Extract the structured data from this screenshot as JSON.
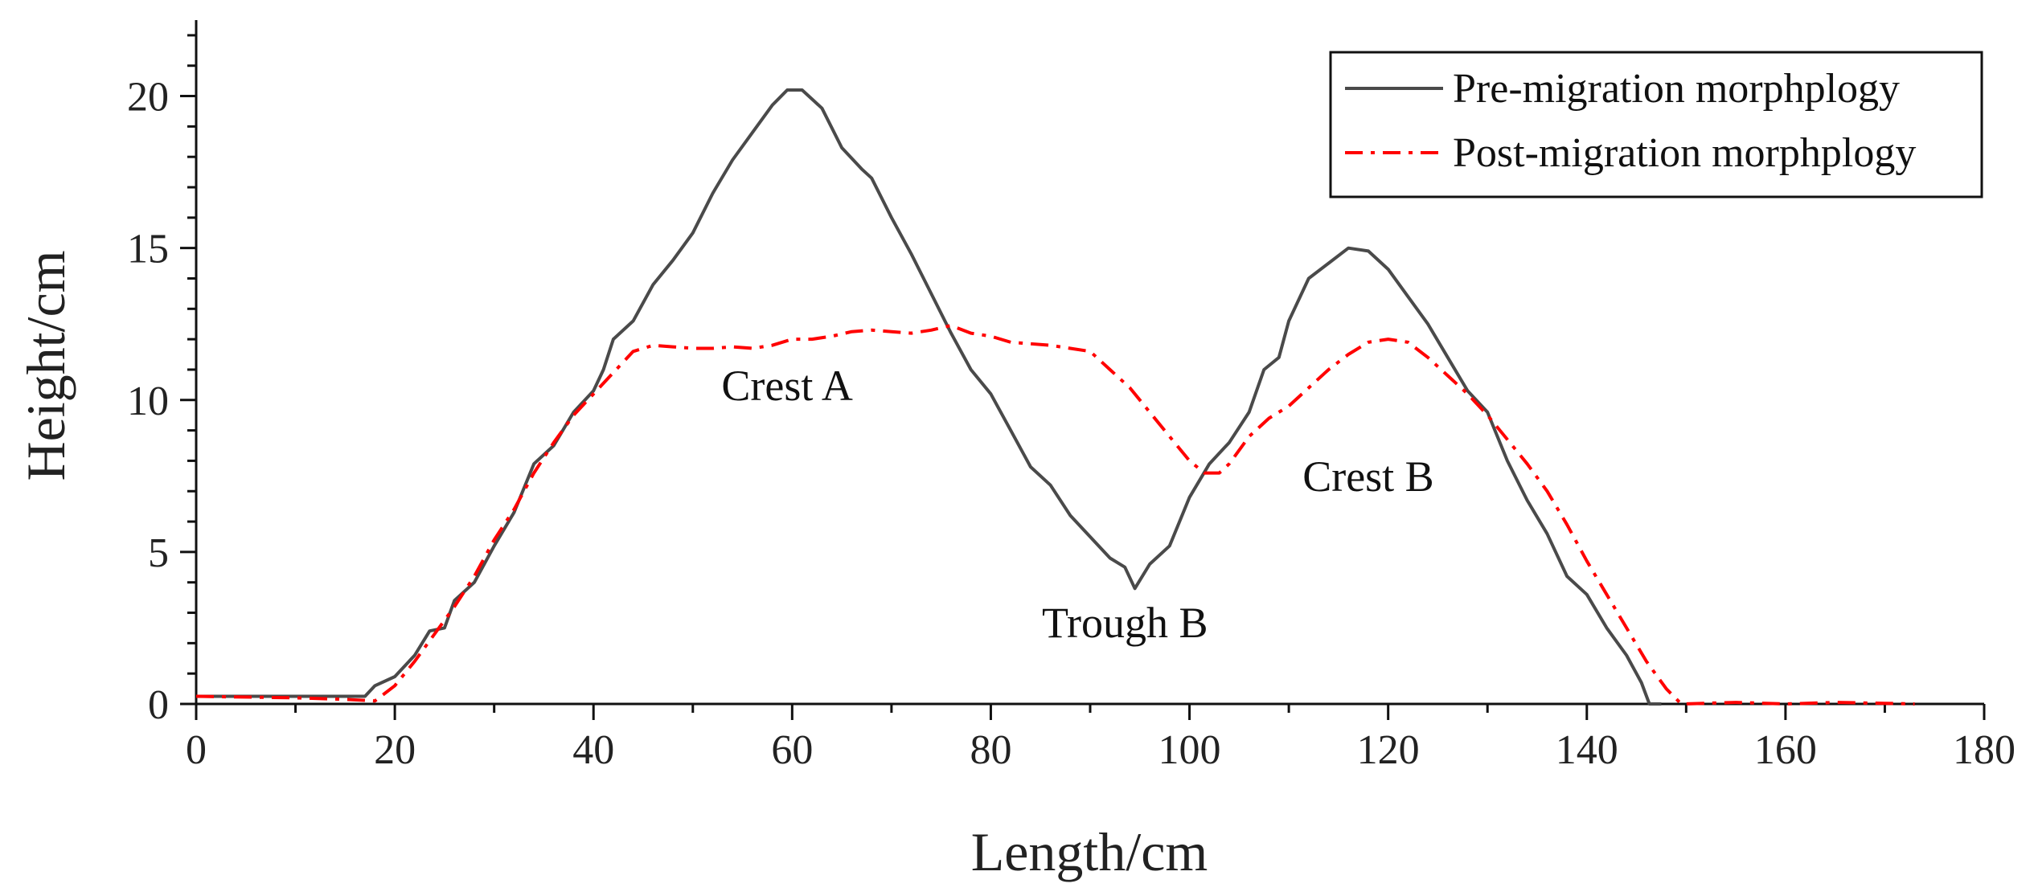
{
  "chart_data": {
    "type": "line",
    "xlabel": "Length/cm",
    "ylabel": "Height/cm",
    "xlim": [
      0,
      180
    ],
    "ylim": [
      0,
      22.5
    ],
    "x_ticks": [
      0,
      20,
      40,
      60,
      80,
      100,
      120,
      140,
      160,
      180
    ],
    "y_ticks": [
      0,
      5,
      10,
      15,
      20
    ],
    "grid": false,
    "legend_position": "top-right",
    "series": [
      {
        "name": "Pre-migration morphplogy",
        "color": "#4a4a4a",
        "style": "solid",
        "points": [
          [
            0,
            0.25
          ],
          [
            10,
            0.25
          ],
          [
            17,
            0.25
          ],
          [
            18,
            0.6
          ],
          [
            20,
            0.9
          ],
          [
            22,
            1.6
          ],
          [
            23.5,
            2.4
          ],
          [
            25,
            2.5
          ],
          [
            26,
            3.4
          ],
          [
            28,
            4.0
          ],
          [
            30,
            5.2
          ],
          [
            32,
            6.3
          ],
          [
            34,
            7.9
          ],
          [
            36,
            8.5
          ],
          [
            38,
            9.6
          ],
          [
            40,
            10.3
          ],
          [
            41,
            11.0
          ],
          [
            42,
            12.0
          ],
          [
            44,
            12.6
          ],
          [
            46,
            13.8
          ],
          [
            48,
            14.6
          ],
          [
            50,
            15.5
          ],
          [
            52,
            16.8
          ],
          [
            54,
            17.9
          ],
          [
            56,
            18.8
          ],
          [
            58,
            19.7
          ],
          [
            59.5,
            20.2
          ],
          [
            61,
            20.2
          ],
          [
            63,
            19.6
          ],
          [
            65,
            18.3
          ],
          [
            67,
            17.6
          ],
          [
            68,
            17.3
          ],
          [
            70,
            16.0
          ],
          [
            72,
            14.8
          ],
          [
            74,
            13.5
          ],
          [
            76,
            12.2
          ],
          [
            78,
            11.0
          ],
          [
            80,
            10.2
          ],
          [
            82,
            9.0
          ],
          [
            84,
            7.8
          ],
          [
            86,
            7.2
          ],
          [
            88,
            6.2
          ],
          [
            90,
            5.5
          ],
          [
            92,
            4.8
          ],
          [
            93.5,
            4.5
          ],
          [
            94.5,
            3.8
          ],
          [
            96,
            4.6
          ],
          [
            98,
            5.2
          ],
          [
            100,
            6.8
          ],
          [
            102,
            7.9
          ],
          [
            104,
            8.6
          ],
          [
            106,
            9.6
          ],
          [
            107.5,
            11.0
          ],
          [
            109,
            11.4
          ],
          [
            110,
            12.6
          ],
          [
            112,
            14.0
          ],
          [
            114,
            14.5
          ],
          [
            116,
            15.0
          ],
          [
            118,
            14.9
          ],
          [
            120,
            14.3
          ],
          [
            122,
            13.4
          ],
          [
            124,
            12.5
          ],
          [
            126,
            11.4
          ],
          [
            128,
            10.3
          ],
          [
            130,
            9.6
          ],
          [
            132,
            8.0
          ],
          [
            134,
            6.7
          ],
          [
            136,
            5.6
          ],
          [
            138,
            4.2
          ],
          [
            140,
            3.6
          ],
          [
            142,
            2.5
          ],
          [
            144,
            1.6
          ],
          [
            145.5,
            0.7
          ],
          [
            146.3,
            0.0
          ],
          [
            147.5,
            0.0
          ]
        ]
      },
      {
        "name": "Post-migration morphplogy",
        "color": "#ff0000",
        "style": "dash-dot",
        "points": [
          [
            0,
            0.25
          ],
          [
            10,
            0.2
          ],
          [
            15,
            0.15
          ],
          [
            18,
            0.1
          ],
          [
            20,
            0.6
          ],
          [
            22,
            1.4
          ],
          [
            24,
            2.3
          ],
          [
            26,
            3.2
          ],
          [
            28,
            4.2
          ],
          [
            30,
            5.4
          ],
          [
            32,
            6.4
          ],
          [
            34,
            7.6
          ],
          [
            36,
            8.6
          ],
          [
            38,
            9.5
          ],
          [
            40,
            10.2
          ],
          [
            42,
            10.9
          ],
          [
            44,
            11.6
          ],
          [
            46,
            11.8
          ],
          [
            48,
            11.75
          ],
          [
            50,
            11.7
          ],
          [
            52,
            11.7
          ],
          [
            54,
            11.75
          ],
          [
            56,
            11.7
          ],
          [
            58,
            11.8
          ],
          [
            60,
            12.0
          ],
          [
            62,
            12.0
          ],
          [
            64,
            12.1
          ],
          [
            66,
            12.25
          ],
          [
            68,
            12.3
          ],
          [
            70,
            12.25
          ],
          [
            72,
            12.2
          ],
          [
            74,
            12.3
          ],
          [
            76,
            12.45
          ],
          [
            78,
            12.2
          ],
          [
            80,
            12.1
          ],
          [
            82,
            11.9
          ],
          [
            84,
            11.85
          ],
          [
            86,
            11.8
          ],
          [
            88,
            11.7
          ],
          [
            90,
            11.6
          ],
          [
            92,
            11.0
          ],
          [
            94,
            10.4
          ],
          [
            96,
            9.6
          ],
          [
            98,
            8.8
          ],
          [
            100,
            8.0
          ],
          [
            101.5,
            7.6
          ],
          [
            103,
            7.6
          ],
          [
            104,
            7.9
          ],
          [
            106,
            8.8
          ],
          [
            108,
            9.4
          ],
          [
            110,
            9.8
          ],
          [
            112,
            10.4
          ],
          [
            114,
            11.0
          ],
          [
            116,
            11.5
          ],
          [
            118,
            11.9
          ],
          [
            120,
            12.0
          ],
          [
            122,
            11.9
          ],
          [
            124,
            11.4
          ],
          [
            126,
            10.8
          ],
          [
            128,
            10.2
          ],
          [
            130,
            9.5
          ],
          [
            132,
            8.7
          ],
          [
            134,
            7.9
          ],
          [
            136,
            7.0
          ],
          [
            138,
            5.9
          ],
          [
            140,
            4.7
          ],
          [
            142,
            3.6
          ],
          [
            144,
            2.5
          ],
          [
            146,
            1.4
          ],
          [
            148,
            0.5
          ],
          [
            149.5,
            0.0
          ],
          [
            155,
            0.05
          ],
          [
            160,
            0.0
          ],
          [
            165,
            0.05
          ],
          [
            170,
            0.02
          ],
          [
            173,
            0.0
          ]
        ]
      }
    ],
    "annotations": [
      {
        "text": "Crest A",
        "x": 59.5,
        "y": 10.0
      },
      {
        "text": "Trough B",
        "x": 93.5,
        "y": 2.2
      },
      {
        "text": "Crest B",
        "x": 118,
        "y": 7.0
      }
    ]
  }
}
